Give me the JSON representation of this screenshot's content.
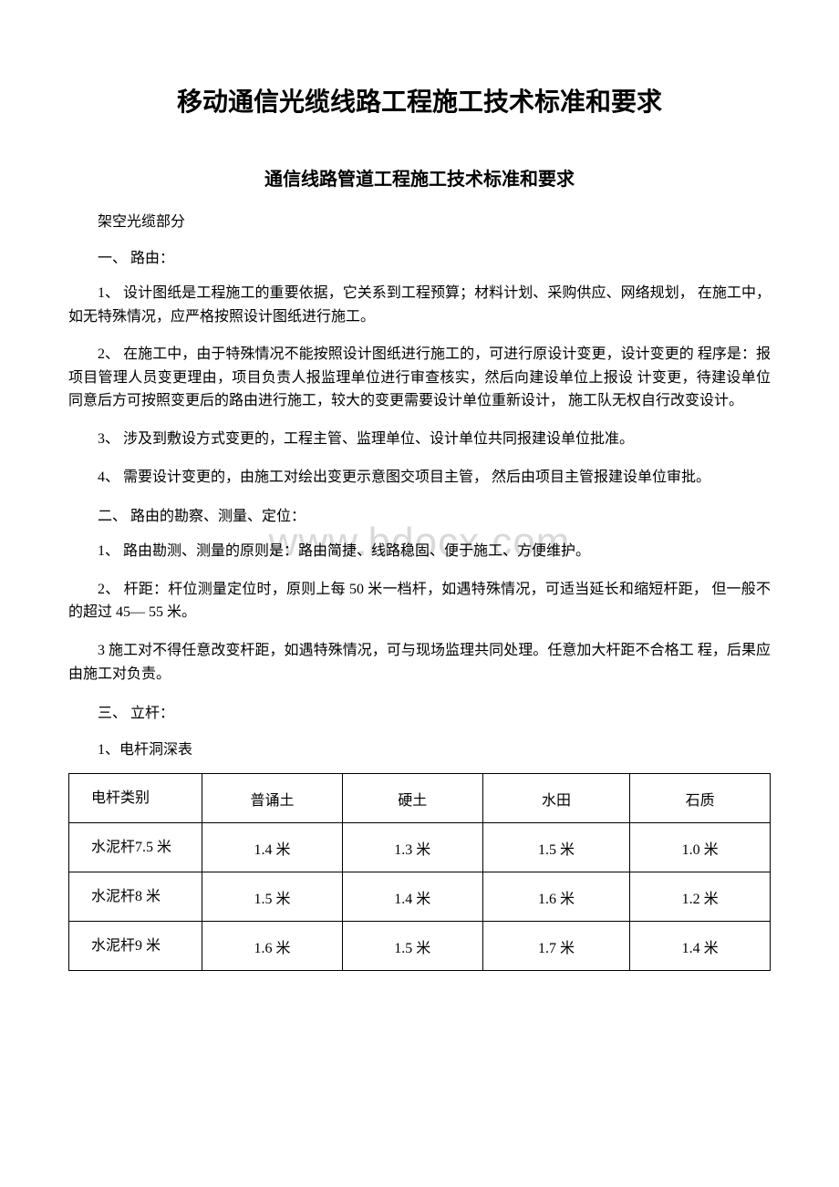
{
  "document": {
    "main_title": "移动通信光缆线路工程施工技术标准和要求",
    "sub_title": "通信线路管道工程施工技术标准和要求",
    "watermark": "www.bdocx.com",
    "section_part": "架空光缆部分",
    "heading_1": "一、 路由：",
    "para_1_1": "1、 设计图纸是工程施工的重要依据，它关系到工程预算；材料计划、采购供应、网络规划， 在施工中，如无特殊情况，应严格按照设计图纸进行施工。",
    "para_1_2": "2、 在施工中，由于特殊情况不能按照设计图纸进行施工的，可进行原设计变更，设计变更的 程序是：报项目管理人员变更理由，项目负责人报监理单位进行审查核实，然后向建设单位上报设 计变更，待建设单位同意后方可按照变更后的路由进行施工，较大的变更需要设计单位重新设计， 施工队无权自行改变设计。",
    "para_1_3": "3、 涉及到敷设方式变更的，工程主管、监理单位、设计单位共同报建设单位批准。",
    "para_1_4": "4、 需要设计变更的，由施工对绘出变更示意图交项目主管， 然后由项目主管报建设单位审批。",
    "heading_2": "二、 路由的勘察、测量、定位：",
    "para_2_1": "1、 路由勘测、测量的原则是：路由简捷、线路稳固、便于施工、方便维护。",
    "para_2_2": "2、 杆距：杆位测量定位时，原则上每 50 米一档杆，如遇特殊情况，可适当延长和缩短杆距， 但一般不的超过 45— 55 米。",
    "para_2_3": "3 施工对不得任意改变杆距，如遇特殊情况，可与现场监理共同处理。任意加大杆距不合格工 程，后果应由施工对负责。",
    "heading_3": "三、 立杆：",
    "para_3_1": "1、电杆洞深表",
    "table": {
      "columns": [
        "电杆类别",
        "普诵土",
        "硬土",
        "水田",
        "石质"
      ],
      "rows": [
        [
          "水泥杆7.5 米",
          "1.4 米",
          "1.3 米",
          "1.5 米",
          "1.0 米"
        ],
        [
          "水泥杆8 米",
          "1.5 米",
          "1.4 米",
          "1.6 米",
          "1.2 米"
        ],
        [
          "水泥杆9 米",
          "1.6 米",
          "1.5 米",
          "1.7 米",
          "1.4 米"
        ]
      ]
    }
  }
}
